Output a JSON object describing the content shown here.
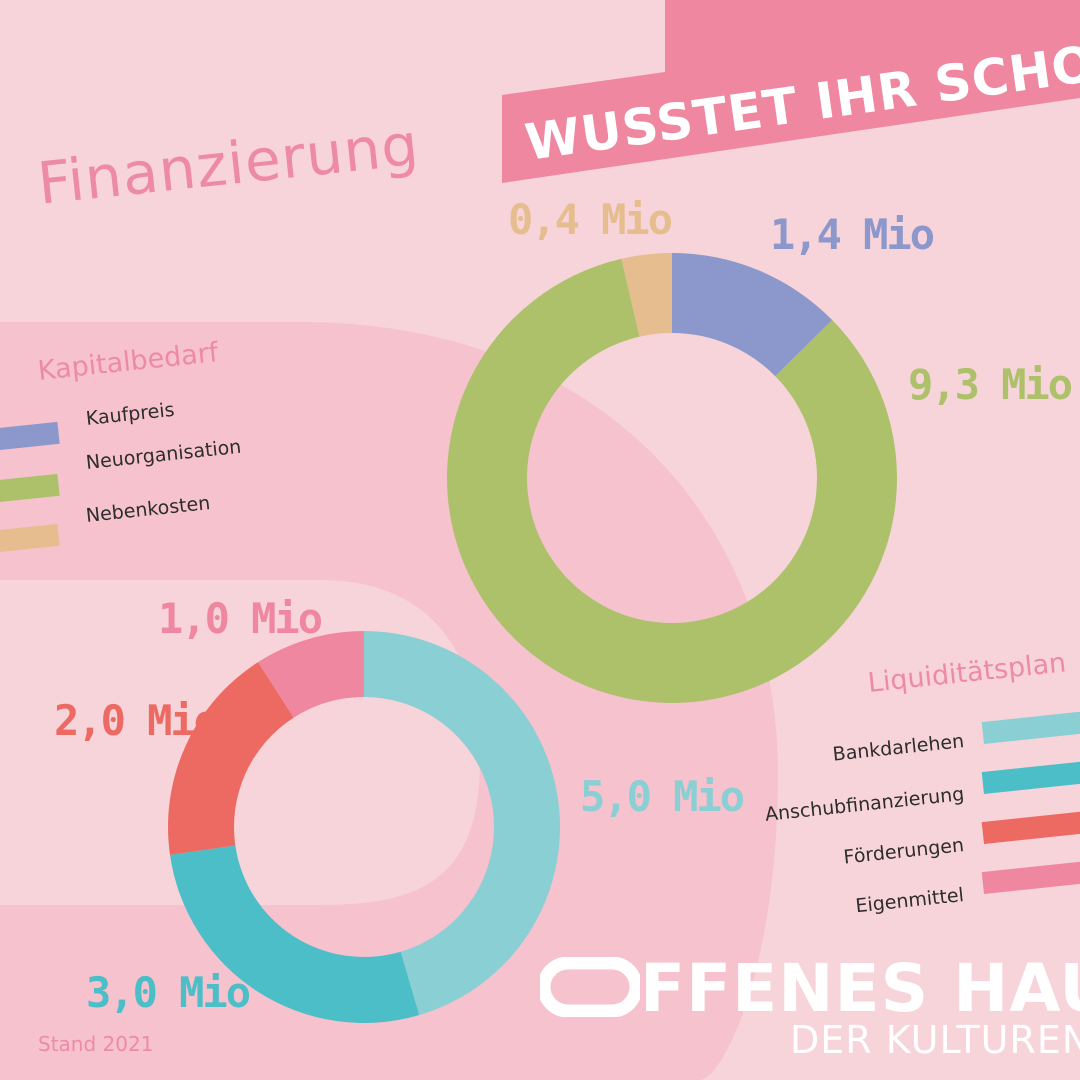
{
  "banner": {
    "text": "WUSSTET IHR SCHON?"
  },
  "title": "Finanzierung",
  "footer": {
    "stand": "Stand 2021"
  },
  "brand": {
    "line1": "FFENES HAUS",
    "line2": "DER KULTUREN"
  },
  "colors": {
    "background": "#f7d4da",
    "blob": "#f5c2cd",
    "banner": "#ef87a0",
    "accent_text": "#ee8ba4"
  },
  "chart_data": [
    {
      "type": "pie",
      "variant": "donut",
      "legend_title": "Kapitalbedarf",
      "categories": [
        "Kaufpreis",
        "Neuorganisation",
        "Nebenkosten"
      ],
      "values": [
        1.4,
        9.3,
        0.4
      ],
      "value_labels": [
        "1,4 Mio",
        "9,3 Mio",
        "0,4 Mio"
      ],
      "colors": [
        "#8c97cb",
        "#adc16b",
        "#e6bd8f"
      ],
      "unit": "Mio"
    },
    {
      "type": "pie",
      "variant": "donut",
      "legend_title": "Liquiditätsplan",
      "categories": [
        "Bankdarlehen",
        "Anschubfinanzierung",
        "Förderungen",
        "Eigenmittel"
      ],
      "values": [
        5.0,
        3.0,
        2.0,
        1.0
      ],
      "value_labels": [
        "5,0 Mio",
        "3,0 Mio",
        "2,0 Mio",
        "1,0 Mio"
      ],
      "colors": [
        "#8acfd3",
        "#4bbec8",
        "#ed6a62",
        "#f087a0"
      ],
      "unit": "Mio"
    }
  ]
}
